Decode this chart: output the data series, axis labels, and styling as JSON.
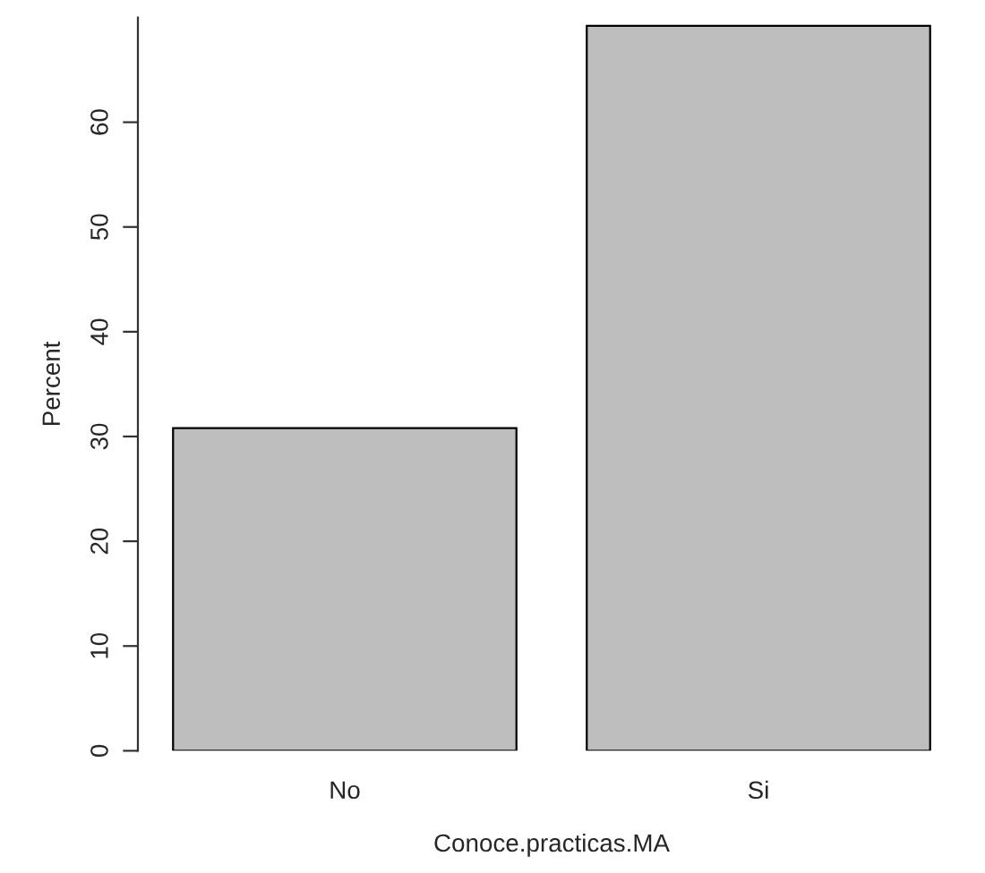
{
  "chart_data": {
    "type": "bar",
    "xlabel": "Conoce.practicas.MA",
    "ylabel": "Percent",
    "categories": [
      "No",
      "Si"
    ],
    "values": [
      30.8,
      69.2
    ],
    "color": "#bebebe",
    "ylim": [
      0,
      70
    ],
    "yticks": [
      0,
      10,
      20,
      30,
      40,
      50,
      60
    ],
    "grid": false
  }
}
